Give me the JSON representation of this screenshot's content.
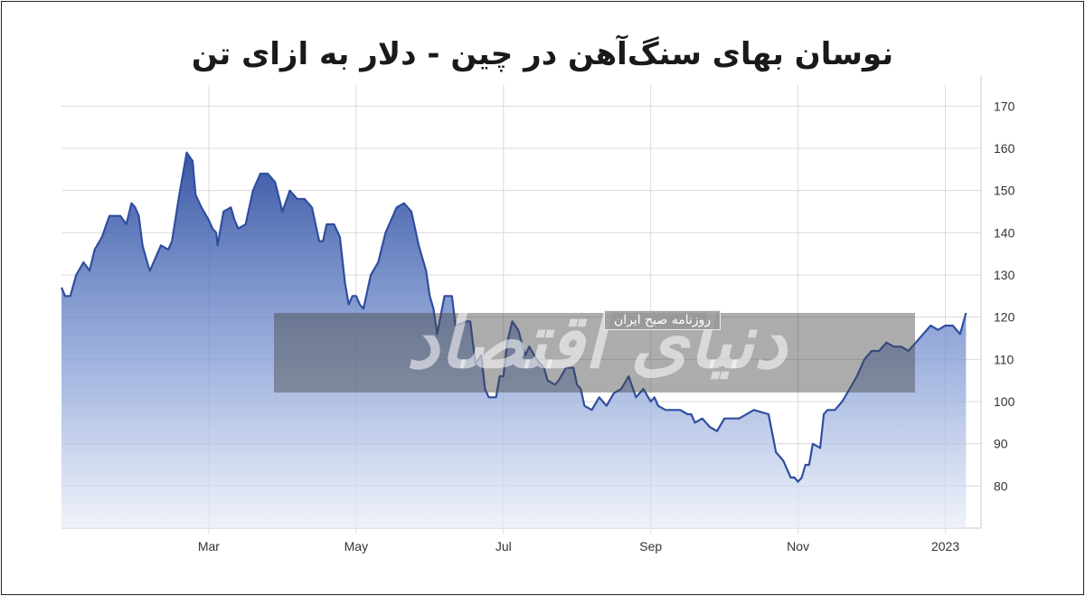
{
  "chart_data": {
    "type": "area",
    "title": "نوسان بهای سنگ‌آهن در چین - دلار به ازای تن",
    "ylim": [
      70,
      175
    ],
    "y_ticks": [
      80,
      90,
      100,
      110,
      120,
      130,
      140,
      150,
      160,
      170
    ],
    "x_tick_labels": [
      "Mar",
      "May",
      "Jul",
      "Sep",
      "Nov",
      "2023"
    ],
    "x_tick_positions": [
      2.0,
      4.0,
      6.0,
      8.0,
      10.0,
      12.0
    ],
    "xlim": [
      0.0,
      12.3
    ],
    "grid": true,
    "y_axis_position": "right",
    "series": [
      {
        "color": "#2f4ea0",
        "x": [
          0.0,
          0.05,
          0.12,
          0.2,
          0.3,
          0.38,
          0.45,
          0.55,
          0.65,
          0.72,
          0.8,
          0.88,
          0.95,
          1.0,
          1.05,
          1.1,
          1.18,
          1.2,
          1.35,
          1.45,
          1.5,
          1.6,
          1.7,
          1.78,
          1.82,
          1.9,
          2.0,
          2.05,
          2.1,
          2.12,
          2.2,
          2.3,
          2.35,
          2.4,
          2.5,
          2.55,
          2.6,
          2.7,
          2.8,
          2.9,
          3.0,
          3.1,
          3.2,
          3.3,
          3.4,
          3.5,
          3.55,
          3.6,
          3.7,
          3.78,
          3.85,
          3.9,
          3.95,
          4.0,
          4.05,
          4.1,
          4.2,
          4.3,
          4.4,
          4.5,
          4.55,
          4.65,
          4.75,
          4.85,
          4.95,
          5.0,
          5.05,
          5.1,
          5.2,
          5.3,
          5.35,
          5.5,
          5.55,
          5.62,
          5.7,
          5.75,
          5.8,
          5.85,
          5.9,
          5.95,
          6.0,
          6.05,
          6.12,
          6.2,
          6.25,
          6.3,
          6.35,
          6.45,
          6.55,
          6.6,
          6.7,
          6.75,
          6.85,
          6.95,
          7.0,
          7.05,
          7.1,
          7.2,
          7.3,
          7.4,
          7.5,
          7.6,
          7.7,
          7.8,
          7.9,
          8.0,
          8.05,
          8.1,
          8.2,
          8.3,
          8.4,
          8.5,
          8.55,
          8.6,
          8.7,
          8.8,
          8.9,
          9.0,
          9.2,
          9.4,
          9.6,
          9.7,
          9.8,
          9.9,
          9.95,
          10.0,
          10.05,
          10.1,
          10.15,
          10.2,
          10.3,
          10.35,
          10.4,
          10.5,
          10.6,
          10.7,
          10.8,
          10.9,
          11.0,
          11.1,
          11.2,
          11.3,
          11.4,
          11.5,
          11.6,
          11.7,
          11.8,
          11.9,
          12.0,
          12.1,
          12.2,
          12.28
        ],
        "y": [
          127,
          125,
          125,
          130,
          133,
          131,
          136,
          139,
          144,
          144,
          144,
          142,
          147,
          146,
          144,
          137,
          132,
          131,
          137,
          136,
          138,
          149,
          159,
          157,
          149,
          146,
          143,
          141,
          140,
          137,
          145,
          146,
          143,
          141,
          142,
          146,
          150,
          154,
          154,
          152,
          145,
          150,
          148,
          148,
          146,
          138,
          138,
          142,
          142,
          139,
          128,
          123,
          125,
          125,
          123,
          122,
          130,
          133,
          140,
          144,
          146,
          147,
          145,
          137,
          131,
          125,
          122,
          116,
          125,
          125,
          118,
          119,
          119,
          109,
          111,
          103,
          101,
          101,
          101,
          106,
          106,
          114,
          119,
          117,
          114,
          111,
          113,
          110,
          108,
          105,
          104,
          105,
          108,
          108,
          104,
          103,
          99,
          98,
          101,
          99,
          102,
          103,
          106,
          101,
          103,
          100,
          101,
          99,
          98,
          98,
          98,
          97,
          97,
          95,
          96,
          94,
          93,
          96,
          96,
          98,
          97,
          88,
          86,
          82,
          82,
          81,
          82,
          85,
          85,
          90,
          89,
          97,
          98,
          98,
          100,
          103,
          106,
          110,
          112,
          112,
          114,
          113,
          113,
          112,
          114,
          116,
          118,
          117,
          118,
          118,
          116,
          121
        ]
      }
    ]
  },
  "watermark": {
    "logo_text": "دنیای اقتصاد",
    "badge_text": "روزنامه صبح ایران"
  }
}
